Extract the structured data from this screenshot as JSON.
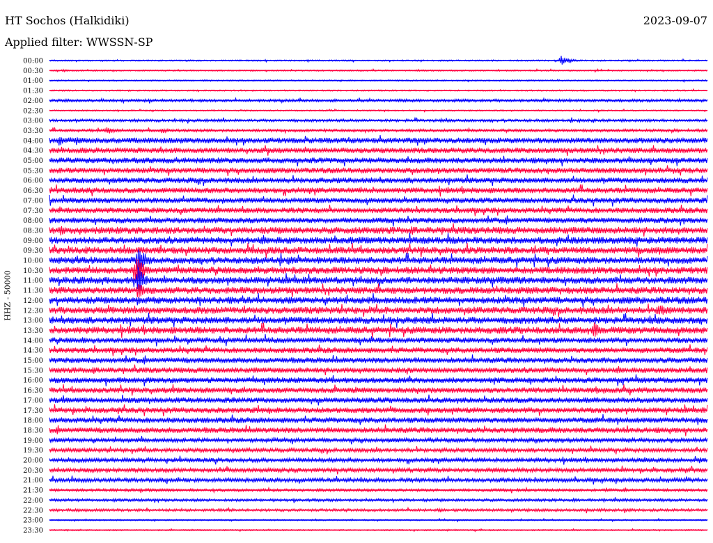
{
  "header": {
    "title": "HT Sochos (Halkidiki)",
    "date": "2023-09-07",
    "filter": "Applied filter: WWSSN-SP"
  },
  "chart_data": {
    "type": "line",
    "title": "HT Sochos (Halkidiki)",
    "ylabel": "HHZ - 50000",
    "trace_minutes": 30,
    "colors": [
      "#0000ff",
      "#ff0040"
    ],
    "rows": [
      "00:00",
      "00:30",
      "01:00",
      "01:30",
      "02:00",
      "02:30",
      "03:00",
      "03:30",
      "04:00",
      "04:30",
      "05:00",
      "05:30",
      "06:00",
      "06:30",
      "07:00",
      "07:30",
      "08:00",
      "08:30",
      "09:00",
      "09:30",
      "10:00",
      "10:30",
      "11:00",
      "11:30",
      "12:00",
      "12:30",
      "13:00",
      "13:30",
      "14:00",
      "14:30",
      "15:00",
      "15:30",
      "16:00",
      "16:30",
      "17:00",
      "17:30",
      "18:00",
      "18:30",
      "19:00",
      "19:30",
      "20:00",
      "20:30",
      "21:00",
      "21:30",
      "22:00",
      "22:30",
      "23:00",
      "23:30"
    ],
    "noise_level": [
      1,
      1,
      1,
      1,
      2,
      1,
      2,
      2,
      4,
      4,
      4,
      4,
      4,
      4,
      4,
      4,
      4,
      5,
      5,
      5,
      5,
      5,
      5,
      5,
      5,
      5,
      5,
      5,
      4,
      4,
      4,
      4,
      4,
      4,
      4,
      4,
      4,
      4,
      3,
      3,
      3,
      3,
      3,
      2,
      2,
      2,
      1,
      1
    ],
    "events": [
      {
        "row": "00:00",
        "minute": 23.3,
        "amp": 9
      },
      {
        "row": "00:30",
        "minute": 0.6,
        "amp": 2
      },
      {
        "row": "03:30",
        "minute": 2.6,
        "amp": 6
      },
      {
        "row": "03:30",
        "minute": 5.1,
        "amp": 5
      },
      {
        "row": "04:00",
        "minute": 0.4,
        "amp": 8
      },
      {
        "row": "04:00",
        "minute": 1.2,
        "amp": 7
      },
      {
        "row": "04:00",
        "minute": 1.8,
        "amp": 5
      },
      {
        "row": "07:00",
        "minute": 22.5,
        "amp": 5
      },
      {
        "row": "08:00",
        "minute": 22.8,
        "amp": 4
      },
      {
        "row": "08:30",
        "minute": 0.5,
        "amp": 8
      },
      {
        "row": "08:30",
        "minute": 4.0,
        "amp": 6
      },
      {
        "row": "09:00",
        "minute": 0.2,
        "amp": 5
      },
      {
        "row": "09:30",
        "minute": 0.8,
        "amp": 4
      },
      {
        "row": "10:00",
        "minute": 4.0,
        "amp": 26
      },
      {
        "row": "10:00",
        "minute": 11.0,
        "amp": 7
      },
      {
        "row": "10:30",
        "minute": 3.9,
        "amp": 26
      },
      {
        "row": "11:00",
        "minute": 4.0,
        "amp": 22
      },
      {
        "row": "11:30",
        "minute": 4.0,
        "amp": 15
      },
      {
        "row": "11:30",
        "minute": 24.6,
        "amp": 6
      },
      {
        "row": "12:00",
        "minute": 4.0,
        "amp": 8
      },
      {
        "row": "12:30",
        "minute": 27.8,
        "amp": 12
      },
      {
        "row": "13:30",
        "minute": 19.6,
        "amp": 6
      },
      {
        "row": "13:30",
        "minute": 24.8,
        "amp": 13
      },
      {
        "row": "14:00",
        "minute": 1.5,
        "amp": 6
      },
      {
        "row": "14:00",
        "minute": 21.0,
        "amp": 4
      },
      {
        "row": "16:30",
        "minute": 5.2,
        "amp": 6
      },
      {
        "row": "16:30",
        "minute": 14.5,
        "amp": 4
      },
      {
        "row": "18:30",
        "minute": 21.1,
        "amp": 5
      },
      {
        "row": "20:00",
        "minute": 27.1,
        "amp": 5
      },
      {
        "row": "20:00",
        "minute": 29.6,
        "amp": 5
      }
    ]
  }
}
